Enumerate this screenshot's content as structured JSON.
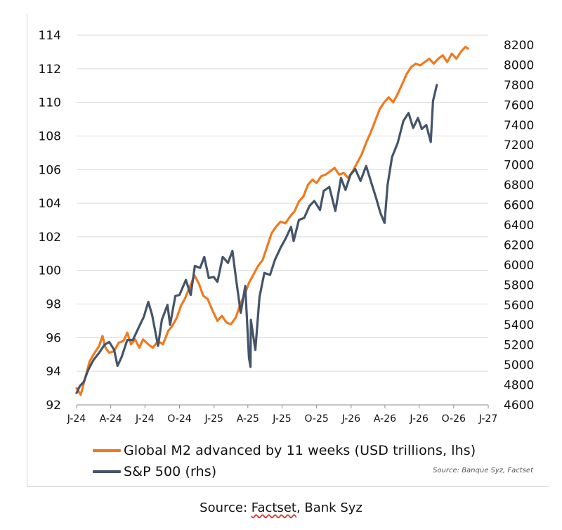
{
  "chart_data": {
    "type": "line",
    "x_axis": {
      "range": [
        "2024-01-01",
        "2027-01-01"
      ],
      "tick_labels": [
        "J-24",
        "A-24",
        "J-24",
        "O-24",
        "J-25",
        "A-25",
        "J-25",
        "O-25",
        "J-26",
        "A-26",
        "J-26",
        "O-26",
        "J-27"
      ],
      "tick_dates": [
        "2024-01-01",
        "2024-04-01",
        "2024-07-01",
        "2024-10-01",
        "2025-01-01",
        "2025-04-01",
        "2025-07-01",
        "2025-10-01",
        "2026-01-01",
        "2026-04-01",
        "2026-07-01",
        "2026-10-01",
        "2027-01-01"
      ]
    },
    "y_axis_left": {
      "ylim": [
        92,
        114
      ],
      "ticks": [
        92,
        94,
        96,
        98,
        100,
        102,
        104,
        106,
        108,
        110,
        112,
        114
      ]
    },
    "y_axis_right": {
      "ylim": [
        4600,
        8300
      ],
      "ticks": [
        4600,
        4800,
        5000,
        5200,
        5400,
        5600,
        5800,
        6000,
        6200,
        6400,
        6600,
        6800,
        7000,
        7200,
        7400,
        7600,
        7800,
        8000,
        8200
      ]
    },
    "grid": "horizontal",
    "series": [
      {
        "name": "Global M2 advanced by 11 weeks (USD trillions, lhs)",
        "axis": "left",
        "color": "#F07A1E",
        "points": [
          [
            "2024-01-01",
            93.0
          ],
          [
            "2024-01-12",
            92.6
          ],
          [
            "2024-01-24",
            93.6
          ],
          [
            "2024-02-05",
            94.6
          ],
          [
            "2024-02-18",
            95.1
          ],
          [
            "2024-03-01",
            95.5
          ],
          [
            "2024-03-10",
            96.1
          ],
          [
            "2024-03-18",
            95.4
          ],
          [
            "2024-03-28",
            95.1
          ],
          [
            "2024-04-10",
            95.2
          ],
          [
            "2024-04-22",
            95.7
          ],
          [
            "2024-05-05",
            95.8
          ],
          [
            "2024-05-15",
            96.3
          ],
          [
            "2024-05-25",
            95.6
          ],
          [
            "2024-06-05",
            95.9
          ],
          [
            "2024-06-16",
            95.4
          ],
          [
            "2024-06-26",
            95.9
          ],
          [
            "2024-07-10",
            95.6
          ],
          [
            "2024-07-22",
            95.4
          ],
          [
            "2024-08-05",
            95.8
          ],
          [
            "2024-08-18",
            95.6
          ],
          [
            "2024-09-01",
            96.4
          ],
          [
            "2024-09-12",
            96.7
          ],
          [
            "2024-09-24",
            97.2
          ],
          [
            "2024-10-05",
            97.9
          ],
          [
            "2024-10-15",
            98.3
          ],
          [
            "2024-10-28",
            99.0
          ],
          [
            "2024-11-10",
            99.7
          ],
          [
            "2024-11-22",
            99.2
          ],
          [
            "2024-12-03",
            98.5
          ],
          [
            "2024-12-15",
            98.3
          ],
          [
            "2024-12-28",
            97.6
          ],
          [
            "2025-01-10",
            97.0
          ],
          [
            "2025-01-22",
            97.3
          ],
          [
            "2025-02-03",
            96.9
          ],
          [
            "2025-02-15",
            96.8
          ],
          [
            "2025-02-28",
            97.2
          ],
          [
            "2025-03-12",
            98.0
          ],
          [
            "2025-03-24",
            98.6
          ],
          [
            "2025-04-05",
            99.3
          ],
          [
            "2025-04-17",
            99.8
          ],
          [
            "2025-04-29",
            100.3
          ],
          [
            "2025-05-10",
            100.6
          ],
          [
            "2025-05-22",
            101.4
          ],
          [
            "2025-06-03",
            102.2
          ],
          [
            "2025-06-15",
            102.6
          ],
          [
            "2025-06-27",
            102.9
          ],
          [
            "2025-07-10",
            102.8
          ],
          [
            "2025-07-22",
            103.2
          ],
          [
            "2025-08-03",
            103.5
          ],
          [
            "2025-08-15",
            104.1
          ],
          [
            "2025-08-27",
            104.4
          ],
          [
            "2025-09-08",
            105.1
          ],
          [
            "2025-09-20",
            105.4
          ],
          [
            "2025-10-01",
            105.2
          ],
          [
            "2025-10-13",
            105.6
          ],
          [
            "2025-10-25",
            105.7
          ],
          [
            "2025-11-06",
            105.9
          ],
          [
            "2025-11-18",
            106.1
          ],
          [
            "2025-11-30",
            105.7
          ],
          [
            "2025-12-12",
            105.8
          ],
          [
            "2025-12-24",
            105.5
          ],
          [
            "2026-01-05",
            105.9
          ],
          [
            "2026-01-17",
            106.4
          ],
          [
            "2026-01-29",
            106.9
          ],
          [
            "2026-02-10",
            107.6
          ],
          [
            "2026-02-22",
            108.2
          ],
          [
            "2026-03-06",
            108.9
          ],
          [
            "2026-03-18",
            109.6
          ],
          [
            "2026-03-30",
            110.0
          ],
          [
            "2026-04-11",
            110.3
          ],
          [
            "2026-04-23",
            110.0
          ],
          [
            "2026-05-05",
            110.5
          ],
          [
            "2026-05-17",
            111.1
          ],
          [
            "2026-05-29",
            111.7
          ],
          [
            "2026-06-10",
            112.1
          ],
          [
            "2026-06-22",
            112.3
          ],
          [
            "2026-07-04",
            112.2
          ],
          [
            "2026-07-16",
            112.4
          ],
          [
            "2026-07-28",
            112.6
          ],
          [
            "2026-08-09",
            112.3
          ],
          [
            "2026-08-21",
            112.6
          ],
          [
            "2026-09-02",
            112.8
          ],
          [
            "2026-09-14",
            112.4
          ],
          [
            "2026-09-26",
            112.9
          ],
          [
            "2026-10-08",
            112.6
          ],
          [
            "2026-10-20",
            113.0
          ],
          [
            "2026-11-01",
            113.3
          ],
          [
            "2026-11-08",
            113.2
          ]
        ]
      },
      {
        "name": "S&P 500 (rhs)",
        "axis": "right",
        "color": "#44546A",
        "points": [
          [
            "2024-01-01",
            4720
          ],
          [
            "2024-01-10",
            4790
          ],
          [
            "2024-01-20",
            4830
          ],
          [
            "2024-02-01",
            4950
          ],
          [
            "2024-02-15",
            5050
          ],
          [
            "2024-03-01",
            5120
          ],
          [
            "2024-03-15",
            5200
          ],
          [
            "2024-03-28",
            5230
          ],
          [
            "2024-04-10",
            5150
          ],
          [
            "2024-04-19",
            4990
          ],
          [
            "2024-04-30",
            5080
          ],
          [
            "2024-05-15",
            5250
          ],
          [
            "2024-05-30",
            5250
          ],
          [
            "2024-06-15",
            5380
          ],
          [
            "2024-06-28",
            5480
          ],
          [
            "2024-07-10",
            5630
          ],
          [
            "2024-07-20",
            5500
          ],
          [
            "2024-08-05",
            5190
          ],
          [
            "2024-08-15",
            5450
          ],
          [
            "2024-08-30",
            5600
          ],
          [
            "2024-09-06",
            5400
          ],
          [
            "2024-09-20",
            5690
          ],
          [
            "2024-10-01",
            5700
          ],
          [
            "2024-10-18",
            5850
          ],
          [
            "2024-10-31",
            5700
          ],
          [
            "2024-11-11",
            5990
          ],
          [
            "2024-11-25",
            5970
          ],
          [
            "2024-12-06",
            6080
          ],
          [
            "2024-12-18",
            5870
          ],
          [
            "2024-12-31",
            5880
          ],
          [
            "2025-01-10",
            5830
          ],
          [
            "2025-01-24",
            6080
          ],
          [
            "2025-02-07",
            6020
          ],
          [
            "2025-02-19",
            6140
          ],
          [
            "2025-03-01",
            5850
          ],
          [
            "2025-03-13",
            5520
          ],
          [
            "2025-03-25",
            5790
          ],
          [
            "2025-04-04",
            5070
          ],
          [
            "2025-04-08",
            4980
          ],
          [
            "2025-04-09",
            5450
          ],
          [
            "2025-04-21",
            5150
          ],
          [
            "2025-05-02",
            5680
          ],
          [
            "2025-05-15",
            5920
          ],
          [
            "2025-05-30",
            5900
          ],
          [
            "2025-06-12",
            6050
          ],
          [
            "2025-06-27",
            6170
          ],
          [
            "2025-07-10",
            6260
          ],
          [
            "2025-07-25",
            6380
          ],
          [
            "2025-08-01",
            6240
          ],
          [
            "2025-08-15",
            6450
          ],
          [
            "2025-08-29",
            6470
          ],
          [
            "2025-09-12",
            6590
          ],
          [
            "2025-09-25",
            6640
          ],
          [
            "2025-10-10",
            6550
          ],
          [
            "2025-10-20",
            6740
          ],
          [
            "2025-11-04",
            6780
          ],
          [
            "2025-11-20",
            6540
          ],
          [
            "2025-12-05",
            6870
          ],
          [
            "2025-12-17",
            6750
          ],
          [
            "2025-12-30",
            6900
          ],
          [
            "2026-01-12",
            6960
          ],
          [
            "2026-01-26",
            6840
          ],
          [
            "2026-02-10",
            6990
          ],
          [
            "2026-02-24",
            6820
          ],
          [
            "2026-03-10",
            6650
          ],
          [
            "2026-03-20",
            6520
          ],
          [
            "2026-03-31",
            6420
          ],
          [
            "2026-04-08",
            6800
          ],
          [
            "2026-04-20",
            7080
          ],
          [
            "2026-05-05",
            7220
          ],
          [
            "2026-05-20",
            7440
          ],
          [
            "2026-06-03",
            7520
          ],
          [
            "2026-06-15",
            7370
          ],
          [
            "2026-06-28",
            7470
          ],
          [
            "2026-07-08",
            7360
          ],
          [
            "2026-07-20",
            7400
          ],
          [
            "2026-08-01",
            7230
          ],
          [
            "2026-08-07",
            7640
          ],
          [
            "2026-08-17",
            7800
          ]
        ]
      }
    ]
  },
  "chart_source_note": "Source: Banque Syz, Factset",
  "caption": {
    "prefix": "Source: ",
    "link": "Factset",
    "suffix": ", Bank Syz"
  }
}
